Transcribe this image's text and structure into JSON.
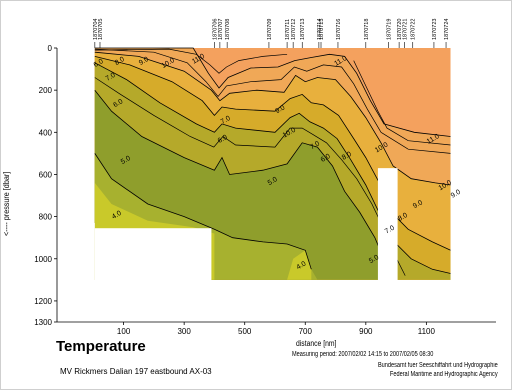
{
  "title": "Temperature",
  "ship_line": "MV Rickmers Dalian 197 eastbound AX-03",
  "measuring_period": "Measuring period: 2007/02/02 14:15 to 2007/02/05 08:30",
  "agency_de": "Bundesamt fuer Seeschiffahrt und Hydrographie",
  "agency_en": "Federal Maritime and Hydrographic Agency",
  "colors": {
    "warm": "#f4a15e",
    "band_11": "#f0a857",
    "band_9": "#e8b03d",
    "band_7": "#d6ab2a",
    "band_6": "#b5a92a",
    "band_5": "#8f9e2c",
    "band_4": "#a7b12f",
    "band_cold": "#c9c92a",
    "contour": "#000000"
  },
  "chart_data": {
    "type": "heatmap",
    "xlabel": "distance [nm]",
    "ylabel": "<---- pressure [dbar]",
    "xlim": [
      -120,
      1330
    ],
    "ylim": [
      1300,
      0
    ],
    "x_ticks": [
      100,
      300,
      500,
      700,
      900,
      1100
    ],
    "y_ticks": [
      0,
      200,
      400,
      600,
      800,
      1000,
      1200,
      1300
    ],
    "contour_levels": [
      4.0,
      5.0,
      6.0,
      7.0,
      8.0,
      9.0,
      10.0,
      11.0
    ],
    "stations": [
      {
        "id": "1870704",
        "x": 5
      },
      {
        "id": "1870705",
        "x": 22
      },
      {
        "id": "1870706",
        "x": 400
      },
      {
        "id": "1870707",
        "x": 418
      },
      {
        "id": "1870708",
        "x": 442
      },
      {
        "id": "1870709",
        "x": 580
      },
      {
        "id": "1870711",
        "x": 640
      },
      {
        "id": "1870712",
        "x": 660
      },
      {
        "id": "1870713",
        "x": 690
      },
      {
        "id": "1870714",
        "x": 745
      },
      {
        "id": "1870715",
        "x": 752
      },
      {
        "id": "1870716",
        "x": 808
      },
      {
        "id": "1870718",
        "x": 900
      },
      {
        "id": "1870719",
        "x": 975
      },
      {
        "id": "1870720",
        "x": 1010
      },
      {
        "id": "1870721",
        "x": 1028
      },
      {
        "id": "1870722",
        "x": 1055
      },
      {
        "id": "1870723",
        "x": 1125
      },
      {
        "id": "1870724",
        "x": 1165
      }
    ],
    "contour_labels": [
      {
        "text": "11.0",
        "x": 350,
        "y": 60
      },
      {
        "text": "10.0",
        "x": 250,
        "y": 80
      },
      {
        "text": "9.0",
        "x": 170,
        "y": 70
      },
      {
        "text": "8.0",
        "x": 90,
        "y": 70
      },
      {
        "text": "6.0",
        "x": 20,
        "y": 80
      },
      {
        "text": "7.0",
        "x": 60,
        "y": 145
      },
      {
        "text": "6.0",
        "x": 85,
        "y": 270
      },
      {
        "text": "5.0",
        "x": 110,
        "y": 540
      },
      {
        "text": "4.0",
        "x": 80,
        "y": 800
      },
      {
        "text": "11.0",
        "x": 820,
        "y": 70
      },
      {
        "text": "10.0",
        "x": 650,
        "y": 410
      },
      {
        "text": "9.0",
        "x": 620,
        "y": 300
      },
      {
        "text": "8.0",
        "x": 840,
        "y": 520
      },
      {
        "text": "7.0",
        "x": 735,
        "y": 470
      },
      {
        "text": "6.0",
        "x": 770,
        "y": 530
      },
      {
        "text": "5.0",
        "x": 595,
        "y": 640
      },
      {
        "text": "4.0",
        "x": 690,
        "y": 1040
      },
      {
        "text": "6.0",
        "x": 430,
        "y": 440
      },
      {
        "text": "7.0",
        "x": 440,
        "y": 350
      },
      {
        "text": "10.0",
        "x": 955,
        "y": 480
      },
      {
        "text": "11.0",
        "x": 1125,
        "y": 440
      },
      {
        "text": "9.0",
        "x": 1075,
        "y": 750
      },
      {
        "text": "8.0",
        "x": 1025,
        "y": 810
      },
      {
        "text": "7.0",
        "x": 982,
        "y": 870
      },
      {
        "text": "5.0",
        "x": 930,
        "y": 1010
      },
      {
        "text": "10.0",
        "x": 1165,
        "y": 660
      },
      {
        "text": "9.0",
        "x": 1200,
        "y": 700
      }
    ]
  }
}
